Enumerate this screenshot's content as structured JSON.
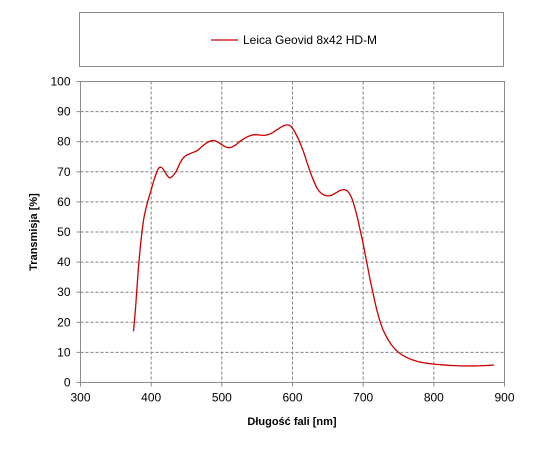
{
  "chart_data": {
    "type": "line",
    "title": "",
    "xlabel": "Długość fali [nm]",
    "ylabel": "Transmisja [%]",
    "xlim": [
      300,
      900
    ],
    "ylim": [
      0,
      100
    ],
    "xticks": [
      300,
      400,
      500,
      600,
      700,
      800,
      900
    ],
    "yticks": [
      0,
      10,
      20,
      30,
      40,
      50,
      60,
      70,
      80,
      90,
      100
    ],
    "grid": true,
    "legend_position": "top",
    "series": [
      {
        "name": "Leica Geovid 8x42 HD-M",
        "color": "#cc0000",
        "x": [
          375,
          378,
          382,
          386,
          390,
          395,
          400,
          405,
          410,
          414,
          418,
          422,
          426,
          430,
          435,
          440,
          445,
          450,
          455,
          460,
          465,
          470,
          475,
          480,
          485,
          490,
          495,
          500,
          505,
          510,
          515,
          520,
          525,
          530,
          535,
          540,
          545,
          550,
          555,
          560,
          565,
          570,
          575,
          580,
          585,
          590,
          595,
          600,
          605,
          610,
          615,
          620,
          625,
          630,
          635,
          640,
          645,
          650,
          655,
          660,
          665,
          670,
          675,
          680,
          685,
          690,
          695,
          700,
          705,
          710,
          715,
          720,
          725,
          730,
          740,
          750,
          760,
          770,
          780,
          790,
          800,
          810,
          820,
          830,
          840,
          850,
          860,
          870,
          880,
          885
        ],
        "y": [
          17,
          25,
          38,
          48,
          55,
          60,
          64,
          68,
          71,
          71.5,
          70.5,
          69,
          68,
          68.5,
          70,
          72.5,
          74.5,
          75.5,
          76,
          76.5,
          77,
          78,
          79,
          79.8,
          80.3,
          80.3,
          79.8,
          79,
          78.3,
          78,
          78.3,
          79,
          80,
          80.8,
          81.5,
          82,
          82.3,
          82.3,
          82.2,
          82.1,
          82.3,
          82.8,
          83.5,
          84.3,
          85,
          85.5,
          85.5,
          84.5,
          82.5,
          80,
          77,
          73.5,
          70,
          67,
          64.5,
          63,
          62.3,
          62,
          62.2,
          62.8,
          63.5,
          64,
          64,
          63,
          60.5,
          56.5,
          51.5,
          46,
          40,
          34,
          28.5,
          23.5,
          19.5,
          16.5,
          12.5,
          10,
          8.5,
          7.5,
          6.8,
          6.4,
          6.1,
          5.9,
          5.7,
          5.6,
          5.5,
          5.5,
          5.5,
          5.6,
          5.7,
          5.8
        ]
      }
    ]
  }
}
